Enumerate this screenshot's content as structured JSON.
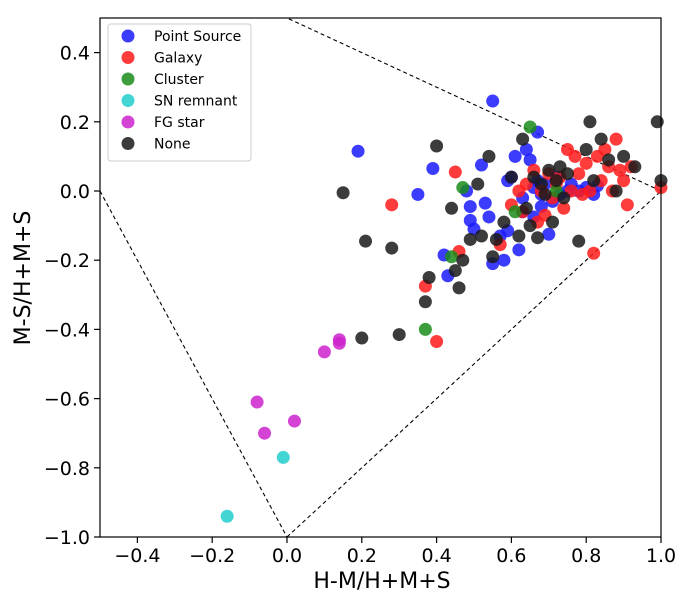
{
  "chart_data": {
    "type": "scatter",
    "title": "",
    "xlabel": "H-M/H+M+S",
    "ylabel": "M-S/H+M+S",
    "xlim": [
      -0.5,
      1.0
    ],
    "ylim": [
      -1.0,
      0.5
    ],
    "xticks": [
      -0.4,
      -0.2,
      0.0,
      0.2,
      0.4,
      0.6,
      0.8,
      1.0
    ],
    "yticks": [
      -1.0,
      -0.8,
      -0.6,
      -0.4,
      -0.2,
      0.0,
      0.2,
      0.4
    ],
    "xtick_labels": [
      "−0.4",
      "−0.2",
      "0.0",
      "0.2",
      "0.4",
      "0.6",
      "0.8",
      "1.0"
    ],
    "ytick_labels": [
      "−1.0",
      "−0.8",
      "−0.6",
      "−0.4",
      "−0.2",
      "0.0",
      "0.2",
      "0.4"
    ],
    "grid": false,
    "legend_position": "top-left",
    "boundary_lines": [
      {
        "from": [
          -0.5,
          0.0
        ],
        "to": [
          0.0,
          -1.0
        ]
      },
      {
        "from": [
          0.0,
          -1.0
        ],
        "to": [
          1.0,
          0.0
        ]
      },
      {
        "from": [
          1.0,
          0.0
        ],
        "to": [
          0.0,
          0.5
        ]
      }
    ],
    "series": [
      {
        "name": "Point Source",
        "color": "#1a1aff",
        "points": [
          [
            0.55,
            0.26
          ],
          [
            0.19,
            0.115
          ],
          [
            0.35,
            -0.01
          ],
          [
            0.39,
            0.065
          ],
          [
            0.42,
            -0.185
          ],
          [
            0.43,
            -0.245
          ],
          [
            0.48,
            0.0
          ],
          [
            0.52,
            0.075
          ],
          [
            0.49,
            -0.045
          ],
          [
            0.49,
            -0.085
          ],
          [
            0.5,
            -0.11
          ],
          [
            0.53,
            -0.035
          ],
          [
            0.54,
            -0.075
          ],
          [
            0.55,
            -0.21
          ],
          [
            0.57,
            -0.13
          ],
          [
            0.58,
            -0.2
          ],
          [
            0.59,
            -0.115
          ],
          [
            0.59,
            0.03
          ],
          [
            0.6,
            0.04
          ],
          [
            0.61,
            0.1
          ],
          [
            0.62,
            -0.17
          ],
          [
            0.63,
            -0.02
          ],
          [
            0.63,
            -0.06
          ],
          [
            0.64,
            0.12
          ],
          [
            0.65,
            0.09
          ],
          [
            0.66,
            0.01
          ],
          [
            0.66,
            -0.075
          ],
          [
            0.67,
            0.17
          ],
          [
            0.67,
            0.03
          ],
          [
            0.68,
            -0.01
          ],
          [
            0.68,
            -0.045
          ],
          [
            0.69,
            0.02
          ],
          [
            0.7,
            -0.125
          ],
          [
            0.71,
            -0.03
          ],
          [
            0.72,
            0.04
          ],
          [
            0.73,
            -0.01
          ],
          [
            0.75,
            0.0
          ],
          [
            0.76,
            0.02
          ],
          [
            0.78,
            0.0
          ],
          [
            0.8,
            0.01
          ],
          [
            0.82,
            -0.01
          ],
          [
            0.83,
            0.015
          ]
        ]
      },
      {
        "name": "Galaxy",
        "color": "#ff1a1a",
        "points": [
          [
            0.28,
            -0.04
          ],
          [
            0.37,
            -0.275
          ],
          [
            0.4,
            -0.435
          ],
          [
            0.45,
            0.055
          ],
          [
            0.46,
            -0.175
          ],
          [
            0.57,
            -0.155
          ],
          [
            0.6,
            -0.04
          ],
          [
            0.62,
            0.0
          ],
          [
            0.63,
            -0.06
          ],
          [
            0.64,
            0.02
          ],
          [
            0.66,
            0.06
          ],
          [
            0.67,
            -0.09
          ],
          [
            0.68,
            0.0
          ],
          [
            0.69,
            -0.07
          ],
          [
            0.7,
            0.05
          ],
          [
            0.71,
            -0.02
          ],
          [
            0.72,
            0.02
          ],
          [
            0.73,
            0.04
          ],
          [
            0.74,
            -0.05
          ],
          [
            0.75,
            0.12
          ],
          [
            0.76,
            0.0
          ],
          [
            0.77,
            0.1
          ],
          [
            0.78,
            0.05
          ],
          [
            0.79,
            -0.01
          ],
          [
            0.8,
            0.08
          ],
          [
            0.81,
            0.0
          ],
          [
            0.82,
            -0.18
          ],
          [
            0.83,
            0.1
          ],
          [
            0.84,
            0.03
          ],
          [
            0.85,
            0.12
          ],
          [
            0.86,
            0.07
          ],
          [
            0.87,
            0.0
          ],
          [
            0.88,
            0.15
          ],
          [
            0.89,
            0.06
          ],
          [
            0.9,
            0.03
          ],
          [
            0.91,
            -0.04
          ],
          [
            0.92,
            0.07
          ],
          [
            1.0,
            0.01
          ]
        ]
      },
      {
        "name": "Cluster",
        "color": "#1a8c1a",
        "points": [
          [
            0.37,
            -0.4
          ],
          [
            0.44,
            -0.19
          ],
          [
            0.47,
            0.01
          ],
          [
            0.61,
            -0.06
          ],
          [
            0.65,
            0.185
          ],
          [
            0.72,
            0.0
          ]
        ]
      },
      {
        "name": "SN remnant",
        "color": "#22cccc",
        "points": [
          [
            -0.16,
            -0.94
          ],
          [
            -0.01,
            -0.77
          ]
        ]
      },
      {
        "name": "FG star",
        "color": "#cc22cc",
        "points": [
          [
            -0.08,
            -0.61
          ],
          [
            -0.06,
            -0.7
          ],
          [
            0.02,
            -0.665
          ],
          [
            0.1,
            -0.465
          ],
          [
            0.14,
            -0.44
          ],
          [
            0.14,
            -0.43
          ]
        ]
      },
      {
        "name": "None",
        "color": "#1a1a1a",
        "points": [
          [
            0.15,
            -0.005
          ],
          [
            0.21,
            -0.145
          ],
          [
            0.2,
            -0.425
          ],
          [
            0.28,
            -0.165
          ],
          [
            0.3,
            -0.415
          ],
          [
            0.37,
            -0.32
          ],
          [
            0.38,
            -0.25
          ],
          [
            0.4,
            0.13
          ],
          [
            0.44,
            -0.05
          ],
          [
            0.45,
            -0.23
          ],
          [
            0.46,
            -0.28
          ],
          [
            0.47,
            -0.2
          ],
          [
            0.49,
            -0.14
          ],
          [
            0.51,
            0.02
          ],
          [
            0.52,
            -0.13
          ],
          [
            0.54,
            0.1
          ],
          [
            0.55,
            -0.19
          ],
          [
            0.56,
            -0.14
          ],
          [
            0.58,
            -0.09
          ],
          [
            0.6,
            0.04
          ],
          [
            0.62,
            -0.13
          ],
          [
            0.63,
            0.15
          ],
          [
            0.64,
            -0.05
          ],
          [
            0.65,
            -0.1
          ],
          [
            0.66,
            0.04
          ],
          [
            0.67,
            -0.135
          ],
          [
            0.68,
            0.02
          ],
          [
            0.69,
            -0.01
          ],
          [
            0.7,
            0.06
          ],
          [
            0.71,
            -0.09
          ],
          [
            0.72,
            0.03
          ],
          [
            0.73,
            0.07
          ],
          [
            0.74,
            -0.02
          ],
          [
            0.75,
            0.05
          ],
          [
            0.78,
            -0.145
          ],
          [
            0.8,
            0.12
          ],
          [
            0.81,
            0.2
          ],
          [
            0.82,
            0.03
          ],
          [
            0.84,
            0.15
          ],
          [
            0.86,
            0.09
          ],
          [
            0.88,
            0.0
          ],
          [
            0.9,
            0.1
          ],
          [
            0.93,
            0.07
          ],
          [
            0.99,
            0.2
          ],
          [
            1.0,
            0.03
          ]
        ]
      }
    ]
  }
}
